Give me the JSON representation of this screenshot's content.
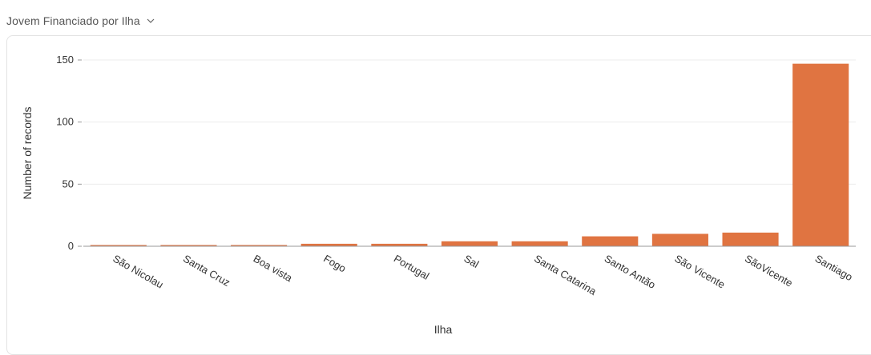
{
  "header": {
    "title": "Jovem Financiado por Ilha"
  },
  "chart_data": {
    "type": "bar",
    "categories": [
      "São Nicolau",
      "Santa Cruz",
      "Boa vista",
      "Fogo",
      "Portugal",
      "Sal",
      "Santa Catarina",
      "Santo Antão",
      "São Vicente",
      "SãoVicente",
      "Santiago"
    ],
    "values": [
      1,
      1,
      1,
      2,
      2,
      4,
      4,
      8,
      10,
      11,
      147
    ],
    "xlabel": "Ilha",
    "ylabel": "Number of records",
    "ylim": [
      0,
      150
    ],
    "yticks": [
      0,
      50,
      100,
      150
    ],
    "grid": true,
    "colors": {
      "bar": "#E07441"
    }
  }
}
